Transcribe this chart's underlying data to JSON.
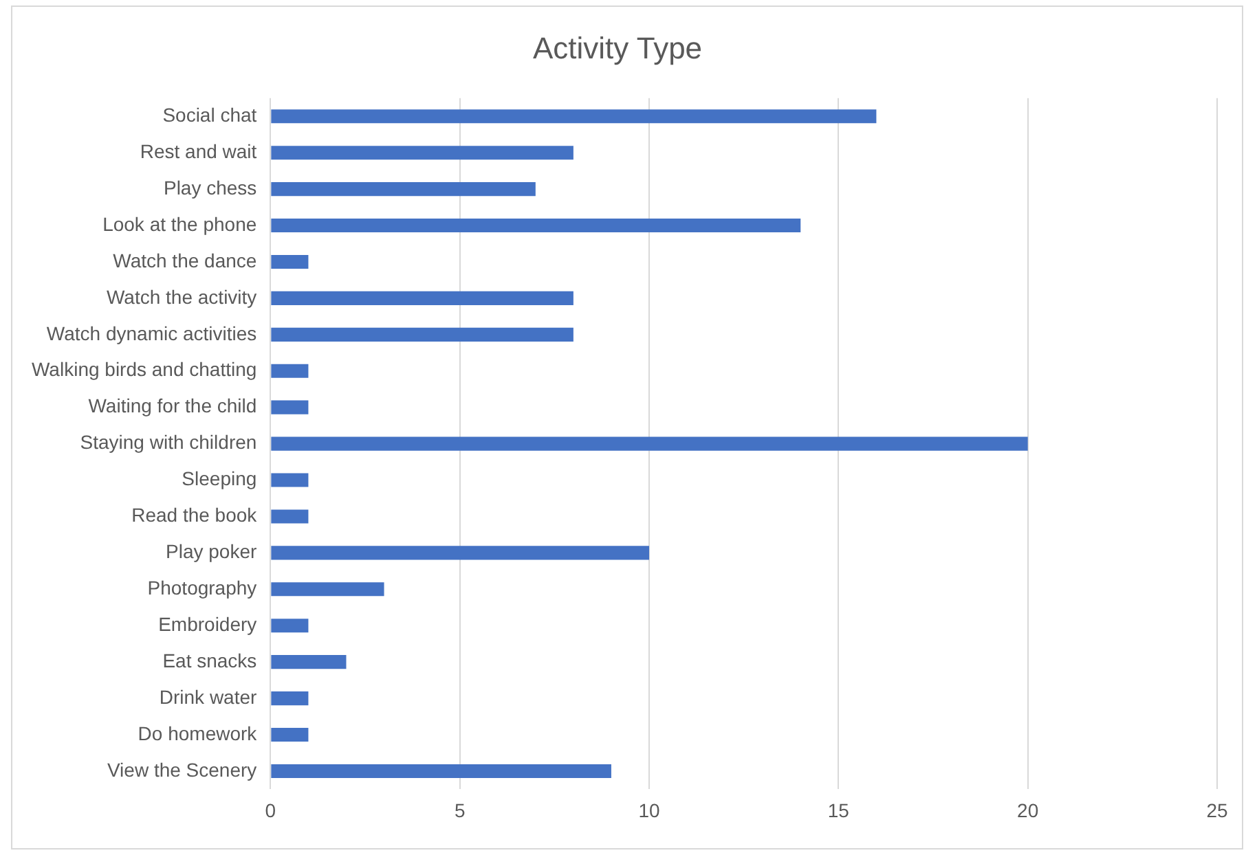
{
  "chart_data": {
    "type": "bar",
    "title": "Activity Type",
    "orientation": "horizontal",
    "categories": [
      "Social chat",
      "Rest and wait",
      "Play chess",
      "Look at the phone",
      "Watch the dance",
      "Watch the activity",
      "Watch dynamic activities",
      "Walking birds and chatting",
      "Waiting for the child",
      "Staying with children",
      "Sleeping",
      "Read the book",
      "Play poker",
      "Photography",
      "Embroidery",
      "Eat snacks",
      "Drink water",
      "Do homework",
      "View the Scenery"
    ],
    "values": [
      16,
      8,
      7,
      14,
      1,
      8,
      8,
      1,
      1,
      20,
      1,
      1,
      10,
      3,
      1,
      2,
      1,
      1,
      9
    ],
    "color": "#4472c4",
    "xlim": [
      0,
      25
    ],
    "xticks": [
      0,
      5,
      10,
      15,
      20,
      25
    ],
    "grid": "x",
    "legend": false
  }
}
